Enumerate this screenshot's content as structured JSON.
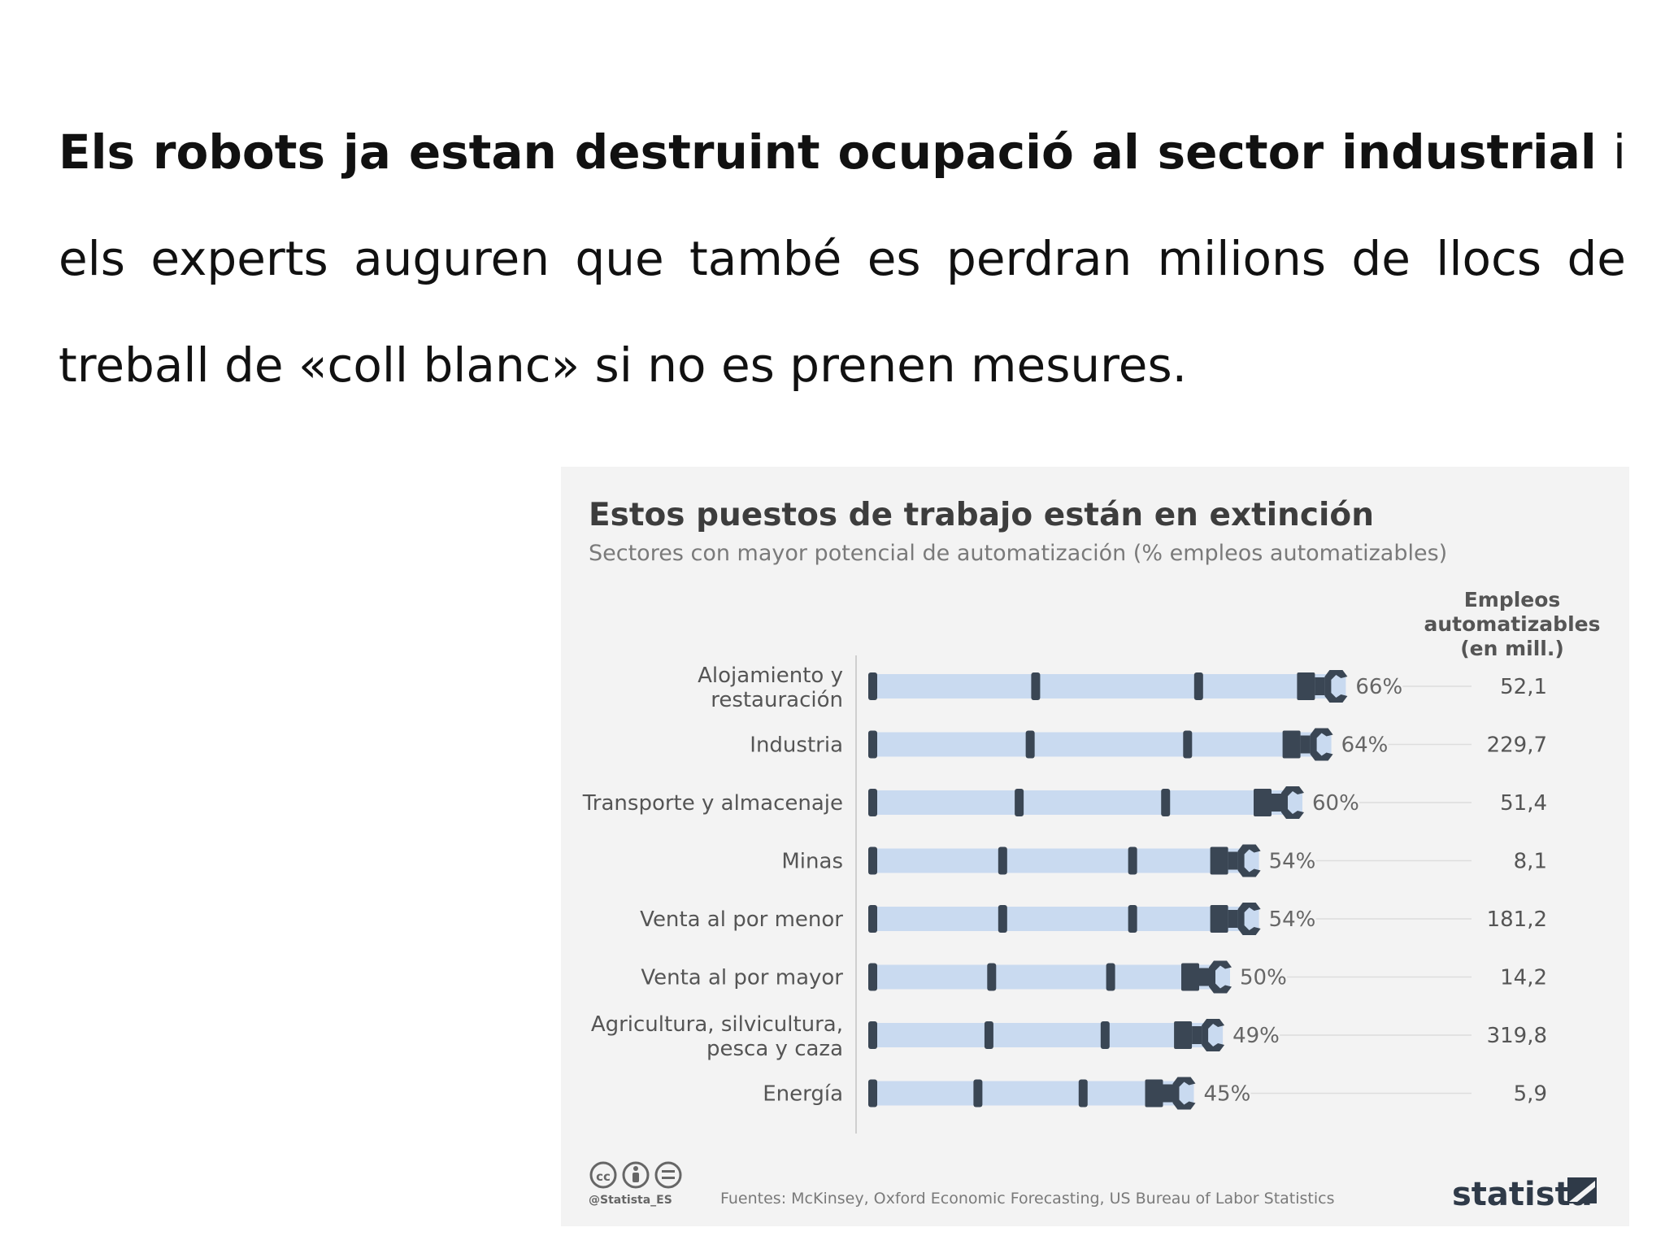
{
  "paragraph": {
    "bold": "Els robots ja estan destruint ocupació al sector industrial",
    "rest": " i els experts auguren que també es perdran milions de llocs de treball de «coll blanc» si no es prenen mesures."
  },
  "chart_data": {
    "type": "bar",
    "title": "Estos puestos de trabajo están en extinción",
    "subtitle": "Sectores con mayor potencial de automatización (% empleos automatizables)",
    "value_column_header": [
      "Empleos",
      "automatizables",
      "(en mill.)"
    ],
    "categories": [
      [
        "Alojamiento y",
        "restauración"
      ],
      [
        "Industria"
      ],
      [
        "Transporte y almacenaje"
      ],
      [
        "Minas"
      ],
      [
        "Venta al por menor"
      ],
      [
        "Venta al por mayor"
      ],
      [
        "Agricultura, silvicultura,",
        "pesca y caza"
      ],
      [
        "Energía"
      ]
    ],
    "values": [
      66,
      64,
      60,
      54,
      54,
      50,
      49,
      45
    ],
    "value_labels": [
      "66%",
      "64%",
      "60%",
      "54%",
      "54%",
      "50%",
      "49%",
      "45%"
    ],
    "jobs_millions": [
      "52,1",
      "229,7",
      "51,4",
      "8,1",
      "181,2",
      "14,2",
      "319,8",
      "5,9"
    ],
    "xlim": [
      0,
      100
    ],
    "grid": false,
    "colors": {
      "bar": "#c9daf0",
      "marker": "#3a4654",
      "text": "#555555",
      "leader": "#dddddd"
    },
    "icons": [
      "creative-commons-icon",
      "attribution-icon",
      "no-derivatives-icon",
      "statista-logo-icon"
    ],
    "handle": "@Statista_ES",
    "source": "Fuentes: McKinsey, Oxford Economic Forecasting, US Bureau of Labor Statistics",
    "brand": "statista"
  }
}
